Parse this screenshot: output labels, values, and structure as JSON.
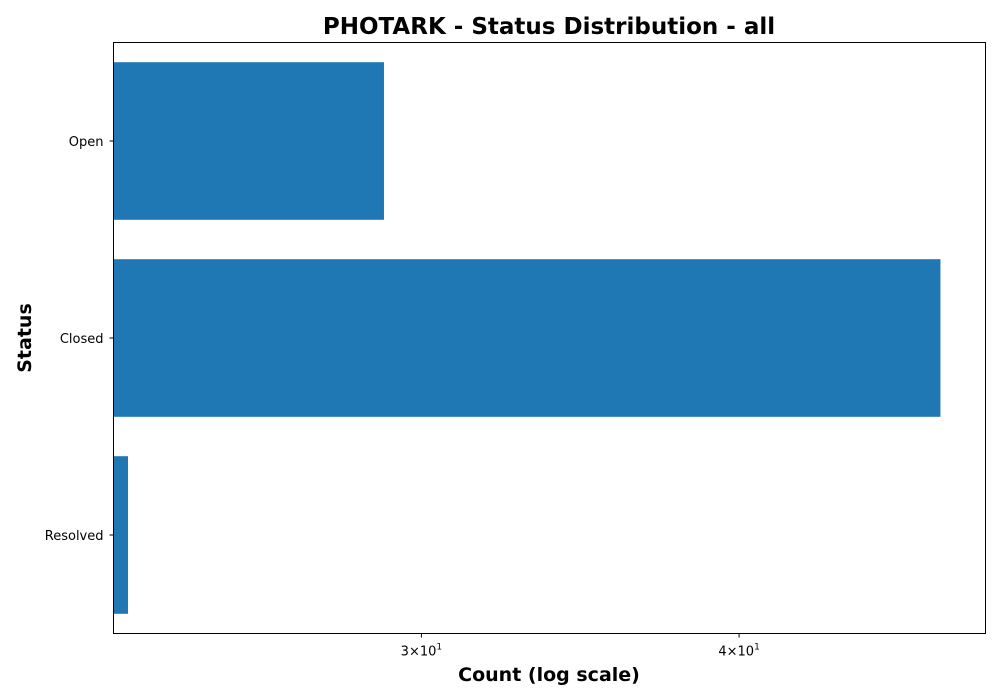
{
  "chart_data": {
    "type": "bar",
    "orientation": "horizontal",
    "title": "PHOTARK - Status Distribution - all",
    "xlabel": "Count (log scale)",
    "ylabel": "Status",
    "x_scale": "log",
    "xlim": [
      22.7,
      50
    ],
    "categories": [
      "Open",
      "Closed",
      "Resolved"
    ],
    "values": [
      29,
      48,
      23
    ],
    "x_ticks": [
      {
        "value": 30,
        "mantissa": "3",
        "base": "10",
        "exp": "1"
      },
      {
        "value": 40,
        "mantissa": "4",
        "base": "10",
        "exp": "1"
      }
    ],
    "bar_color": "#1f77b4",
    "grid": false,
    "legend": "none"
  }
}
